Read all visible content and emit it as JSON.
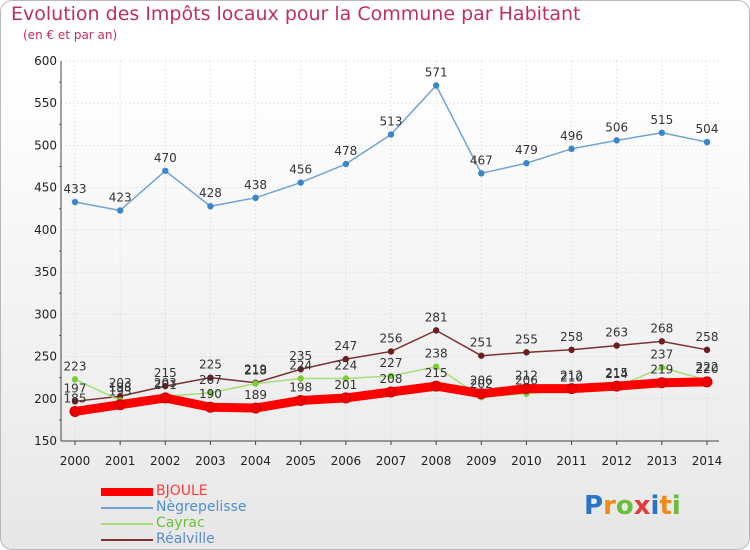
{
  "header": {
    "title": "Evolution des Impôts locaux pour la Commune par Habitant",
    "subtitle": "(en € et par an)"
  },
  "logo": {
    "text": "Proxiti",
    "colors": [
      "#2a74c8",
      "#f28a1a",
      "#6cbe3a",
      "#e23b3b",
      "#2a74c8",
      "#f28a1a",
      "#6cbe3a"
    ]
  },
  "chart_data": {
    "type": "line",
    "title": "Evolution des Impôts locaux pour la Commune par Habitant",
    "subtitle": "(en € et par an)",
    "xlabel": "",
    "ylabel": "",
    "ylim": [
      150,
      600
    ],
    "yticks": [
      150,
      200,
      250,
      300,
      350,
      400,
      450,
      500,
      550,
      600
    ],
    "x": [
      "2000",
      "2001",
      "2002",
      "2003",
      "2004",
      "2005",
      "2006",
      "2007",
      "2008",
      "2009",
      "2010",
      "2011",
      "2012",
      "2013",
      "2014"
    ],
    "grid": true,
    "legend_position": "bottom-left",
    "series": [
      {
        "name": "BJOULE",
        "color": "#ff0000",
        "marker_color": "#ee0000",
        "values": [
          185,
          193,
          201,
          190,
          189,
          198,
          201,
          208,
          215,
          206,
          212,
          212,
          215,
          219,
          220
        ],
        "labels": [
          "185",
          "193",
          "201",
          "190",
          "189",
          "198",
          "201",
          "208",
          "215",
          "206",
          "212",
          "212",
          "215",
          "219",
          "220"
        ]
      },
      {
        "name": "Nègrepelisse",
        "color": "#6fa3d2",
        "marker_color": "#3a86c9",
        "values": [
          433,
          423,
          470,
          428,
          438,
          456,
          478,
          513,
          571,
          467,
          479,
          496,
          506,
          515,
          504
        ],
        "labels": [
          "433",
          "423",
          "470",
          "428",
          "438",
          "456",
          "478",
          "513",
          "571",
          "467",
          "479",
          "496",
          "506",
          "515",
          "504"
        ]
      },
      {
        "name": "Cayrac",
        "color": "#a6dd77",
        "marker_color": "#7ccc3a",
        "values": [
          223,
          198,
          203,
          207,
          218,
          224,
          224,
          227,
          238,
          202,
          206,
          210,
          214,
          237,
          222
        ],
        "labels": [
          "223",
          "198",
          "203",
          "207",
          "218",
          "224",
          "224",
          "227",
          "238",
          "202",
          "206",
          "210",
          "214",
          "237",
          "222"
        ]
      },
      {
        "name": "Réalville",
        "color": "#7a3232",
        "marker_color": "#6a1e1e",
        "values": [
          197,
          203,
          215,
          225,
          219,
          235,
          247,
          256,
          281,
          251,
          255,
          258,
          263,
          268,
          258
        ],
        "labels": [
          "197",
          "203",
          "215",
          "225",
          "219",
          "235",
          "247",
          "256",
          "281",
          "251",
          "255",
          "258",
          "263",
          "268",
          "258"
        ]
      }
    ]
  }
}
